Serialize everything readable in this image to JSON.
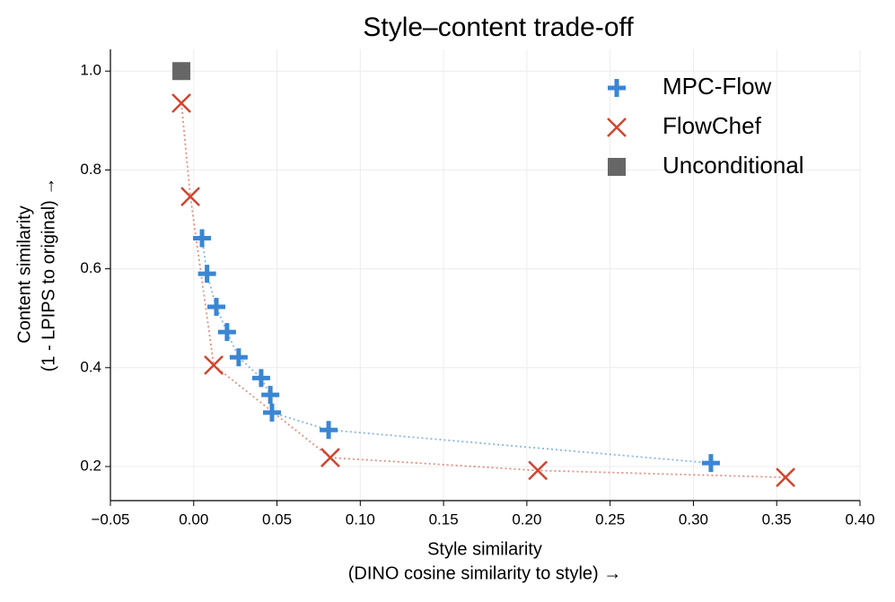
{
  "chart_data": {
    "type": "scatter",
    "title": "Style–content trade-off",
    "x_label": [
      "Style similarity",
      "(DINO cosine similarity to style) →"
    ],
    "y_label": [
      "Content similarity",
      "(1 - LPIPS to original) →"
    ],
    "xlim": [
      -0.05,
      0.4
    ],
    "ylim": [
      0.131,
      1.044
    ],
    "xticks": [
      {
        "value": -0.05,
        "label": "−0.05"
      },
      {
        "value": 0,
        "label": "0.00"
      },
      0.05,
      {
        "value": 0.1,
        "label": "0.10"
      },
      0.15,
      {
        "value": 0.2,
        "label": "0.20"
      },
      0.25,
      {
        "value": 0.3,
        "label": "0.30"
      },
      0.35,
      {
        "value": 0.4,
        "label": "0.40"
      }
    ],
    "yticks": [
      0.2,
      0.4,
      0.6,
      0.8,
      {
        "value": 1.0,
        "label": "1.0"
      }
    ],
    "grid": true,
    "legend": "upper right",
    "series": [
      {
        "name": "MPC-Flow",
        "color": "#3a86d4",
        "marker": "plus",
        "line": "dotted",
        "x": [
          0.005,
          0.008,
          0.0136,
          0.02,
          0.027,
          0.0405,
          0.046,
          0.047,
          0.081,
          0.3105
        ],
        "y": [
          0.662,
          0.59,
          0.523,
          0.472,
          0.421,
          0.379,
          0.345,
          0.309,
          0.274,
          0.207
        ]
      },
      {
        "name": "FlowChef",
        "color": "#d2452f",
        "marker": "x",
        "line": "dotted",
        "x": [
          -0.0074,
          -0.002,
          0.012,
          0.082,
          0.2066,
          0.3553
        ],
        "y": [
          0.935,
          0.746,
          0.405,
          0.218,
          0.192,
          0.178
        ]
      },
      {
        "name": "Unconditional",
        "color": "#666666",
        "marker": "square",
        "line": "none",
        "x": [
          -0.0074
        ],
        "y": [
          1.0
        ]
      }
    ]
  }
}
